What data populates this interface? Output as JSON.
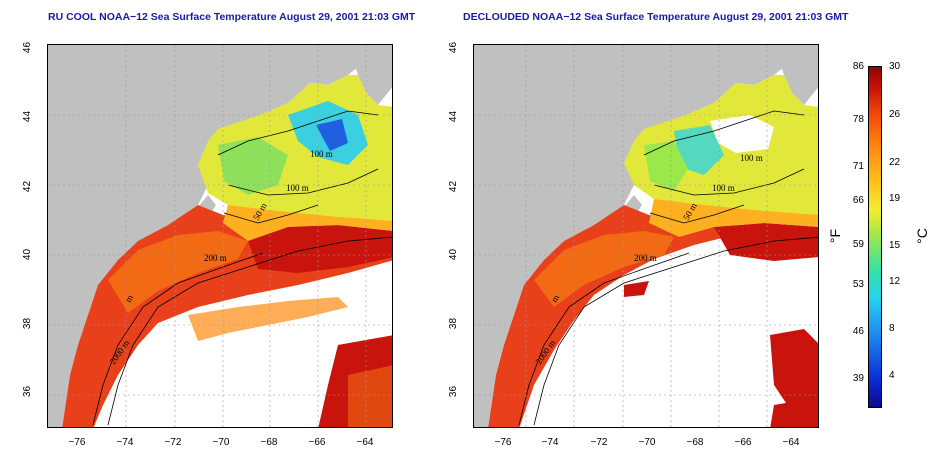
{
  "maps": [
    {
      "id": "ru-cool",
      "title": "RU COOL NOAA−12 Sea Surface Temperature August 29, 2001 21:03 GMT",
      "contour_labels": [
        "100 m",
        "100 m",
        "50 m",
        "200 m",
        "2000 m",
        "m"
      ]
    },
    {
      "id": "declouded",
      "title": "DECLOUDED NOAA−12 Sea Surface Temperature August 29, 2001 21:03 GMT",
      "contour_labels": [
        "100 m",
        "100 m",
        "50 m",
        "200 m",
        "2000 m",
        "m"
      ]
    }
  ],
  "axes": {
    "lat_ticks": [
      "46",
      "44",
      "42",
      "40",
      "38",
      "36"
    ],
    "lon_ticks": [
      "−76",
      "−74",
      "−72",
      "−70",
      "−68",
      "−66",
      "−64"
    ]
  },
  "colorbar": {
    "fahrenheit_ticks": [
      "86",
      "78",
      "71",
      "66",
      "59",
      "53",
      "46",
      "39"
    ],
    "celsius_ticks": [
      "30",
      "26",
      "22",
      "19",
      "15",
      "12",
      "8",
      "4"
    ],
    "fahrenheit_unit": "°F",
    "celsius_unit": "°C"
  },
  "colors": {
    "land": "#c0c0c0",
    "cloud_nodata": "#ffffff",
    "title": "#1a1aa6"
  }
}
